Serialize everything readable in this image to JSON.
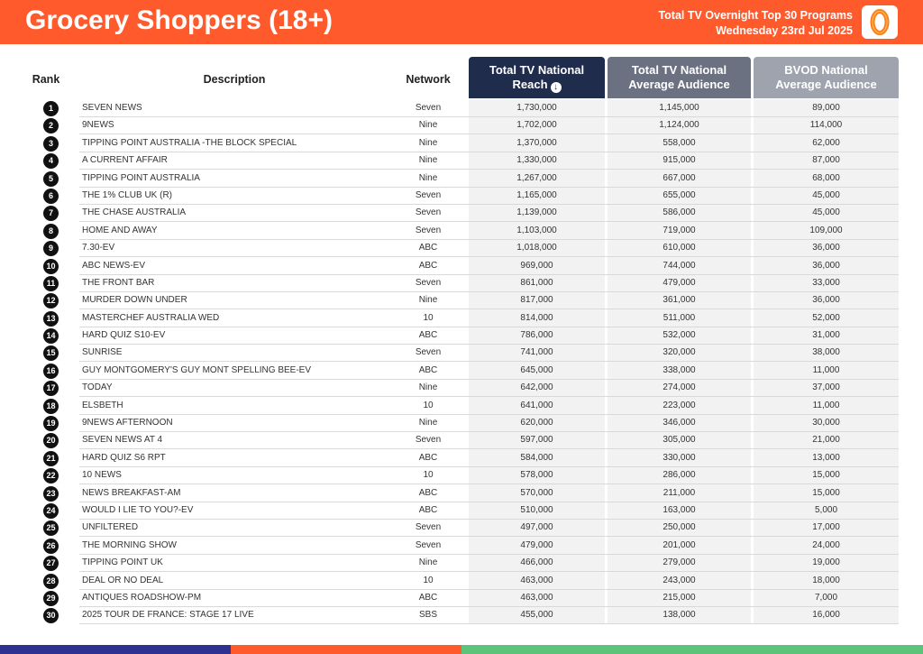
{
  "header": {
    "title": "Grocery Shoppers (18+)",
    "report_line1": "Total TV Overnight Top 30 Programs",
    "report_line2": "Wednesday 23rd Jul 2025",
    "logo_icon": "oztam-logo-icon",
    "colors": {
      "banner": "#ff5a2c",
      "logo_accent": "#ff7a1a"
    }
  },
  "columns": {
    "rank": "Rank",
    "description": "Description",
    "network": "Network",
    "reach_line1": "Total TV National",
    "reach_line2": "Reach",
    "avg_line1": "Total TV National",
    "avg_line2": "Average Audience",
    "bvod_line1": "BVOD National",
    "bvod_line2": "Average Audience",
    "sort_icon": "sort-down-icon"
  },
  "rows": [
    {
      "rank": "1",
      "description": "SEVEN NEWS",
      "network": "Seven",
      "reach": "1,730,000",
      "avg": "1,145,000",
      "bvod": "89,000"
    },
    {
      "rank": "2",
      "description": "9NEWS",
      "network": "Nine",
      "reach": "1,702,000",
      "avg": "1,124,000",
      "bvod": "114,000"
    },
    {
      "rank": "3",
      "description": "TIPPING POINT AUSTRALIA -THE BLOCK SPECIAL",
      "network": "Nine",
      "reach": "1,370,000",
      "avg": "558,000",
      "bvod": "62,000"
    },
    {
      "rank": "4",
      "description": "A CURRENT AFFAIR",
      "network": "Nine",
      "reach": "1,330,000",
      "avg": "915,000",
      "bvod": "87,000"
    },
    {
      "rank": "5",
      "description": "TIPPING POINT AUSTRALIA",
      "network": "Nine",
      "reach": "1,267,000",
      "avg": "667,000",
      "bvod": "68,000"
    },
    {
      "rank": "6",
      "description": "THE 1% CLUB UK (R)",
      "network": "Seven",
      "reach": "1,165,000",
      "avg": "655,000",
      "bvod": "45,000"
    },
    {
      "rank": "7",
      "description": "THE CHASE AUSTRALIA",
      "network": "Seven",
      "reach": "1,139,000",
      "avg": "586,000",
      "bvod": "45,000"
    },
    {
      "rank": "8",
      "description": "HOME AND AWAY",
      "network": "Seven",
      "reach": "1,103,000",
      "avg": "719,000",
      "bvod": "109,000"
    },
    {
      "rank": "9",
      "description": "7.30-EV",
      "network": "ABC",
      "reach": "1,018,000",
      "avg": "610,000",
      "bvod": "36,000"
    },
    {
      "rank": "10",
      "description": "ABC NEWS-EV",
      "network": "ABC",
      "reach": "969,000",
      "avg": "744,000",
      "bvod": "36,000"
    },
    {
      "rank": "11",
      "description": "THE FRONT BAR",
      "network": "Seven",
      "reach": "861,000",
      "avg": "479,000",
      "bvod": "33,000"
    },
    {
      "rank": "12",
      "description": "MURDER DOWN UNDER",
      "network": "Nine",
      "reach": "817,000",
      "avg": "361,000",
      "bvod": "36,000"
    },
    {
      "rank": "13",
      "description": "MASTERCHEF AUSTRALIA WED",
      "network": "10",
      "reach": "814,000",
      "avg": "511,000",
      "bvod": "52,000"
    },
    {
      "rank": "14",
      "description": "HARD QUIZ S10-EV",
      "network": "ABC",
      "reach": "786,000",
      "avg": "532,000",
      "bvod": "31,000"
    },
    {
      "rank": "15",
      "description": "SUNRISE",
      "network": "Seven",
      "reach": "741,000",
      "avg": "320,000",
      "bvod": "38,000"
    },
    {
      "rank": "16",
      "description": "GUY MONTGOMERY'S GUY MONT SPELLING BEE-EV",
      "network": "ABC",
      "reach": "645,000",
      "avg": "338,000",
      "bvod": "11,000"
    },
    {
      "rank": "17",
      "description": "TODAY",
      "network": "Nine",
      "reach": "642,000",
      "avg": "274,000",
      "bvod": "37,000"
    },
    {
      "rank": "18",
      "description": "ELSBETH",
      "network": "10",
      "reach": "641,000",
      "avg": "223,000",
      "bvod": "11,000"
    },
    {
      "rank": "19",
      "description": "9NEWS AFTERNOON",
      "network": "Nine",
      "reach": "620,000",
      "avg": "346,000",
      "bvod": "30,000"
    },
    {
      "rank": "20",
      "description": "SEVEN NEWS AT 4",
      "network": "Seven",
      "reach": "597,000",
      "avg": "305,000",
      "bvod": "21,000"
    },
    {
      "rank": "21",
      "description": "HARD QUIZ S6 RPT",
      "network": "ABC",
      "reach": "584,000",
      "avg": "330,000",
      "bvod": "13,000"
    },
    {
      "rank": "22",
      "description": "10 NEWS",
      "network": "10",
      "reach": "578,000",
      "avg": "286,000",
      "bvod": "15,000"
    },
    {
      "rank": "23",
      "description": "NEWS BREAKFAST-AM",
      "network": "ABC",
      "reach": "570,000",
      "avg": "211,000",
      "bvod": "15,000"
    },
    {
      "rank": "24",
      "description": "WOULD I LIE TO YOU?-EV",
      "network": "ABC",
      "reach": "510,000",
      "avg": "163,000",
      "bvod": "5,000"
    },
    {
      "rank": "25",
      "description": "UNFILTERED",
      "network": "Seven",
      "reach": "497,000",
      "avg": "250,000",
      "bvod": "17,000"
    },
    {
      "rank": "26",
      "description": "THE MORNING SHOW",
      "network": "Seven",
      "reach": "479,000",
      "avg": "201,000",
      "bvod": "24,000"
    },
    {
      "rank": "27",
      "description": "TIPPING POINT UK",
      "network": "Nine",
      "reach": "466,000",
      "avg": "279,000",
      "bvod": "19,000"
    },
    {
      "rank": "28",
      "description": "DEAL OR NO DEAL",
      "network": "10",
      "reach": "463,000",
      "avg": "243,000",
      "bvod": "18,000"
    },
    {
      "rank": "29",
      "description": "ANTIQUES ROADSHOW-PM",
      "network": "ABC",
      "reach": "463,000",
      "avg": "215,000",
      "bvod": "7,000"
    },
    {
      "rank": "30",
      "description": "2025 TOUR DE FRANCE: STAGE 17 LIVE",
      "network": "SBS",
      "reach": "455,000",
      "avg": "138,000",
      "bvod": "16,000"
    }
  ],
  "footer": {
    "colors": [
      "#2e3192",
      "#ff5a2c",
      "#5cc47a"
    ]
  }
}
